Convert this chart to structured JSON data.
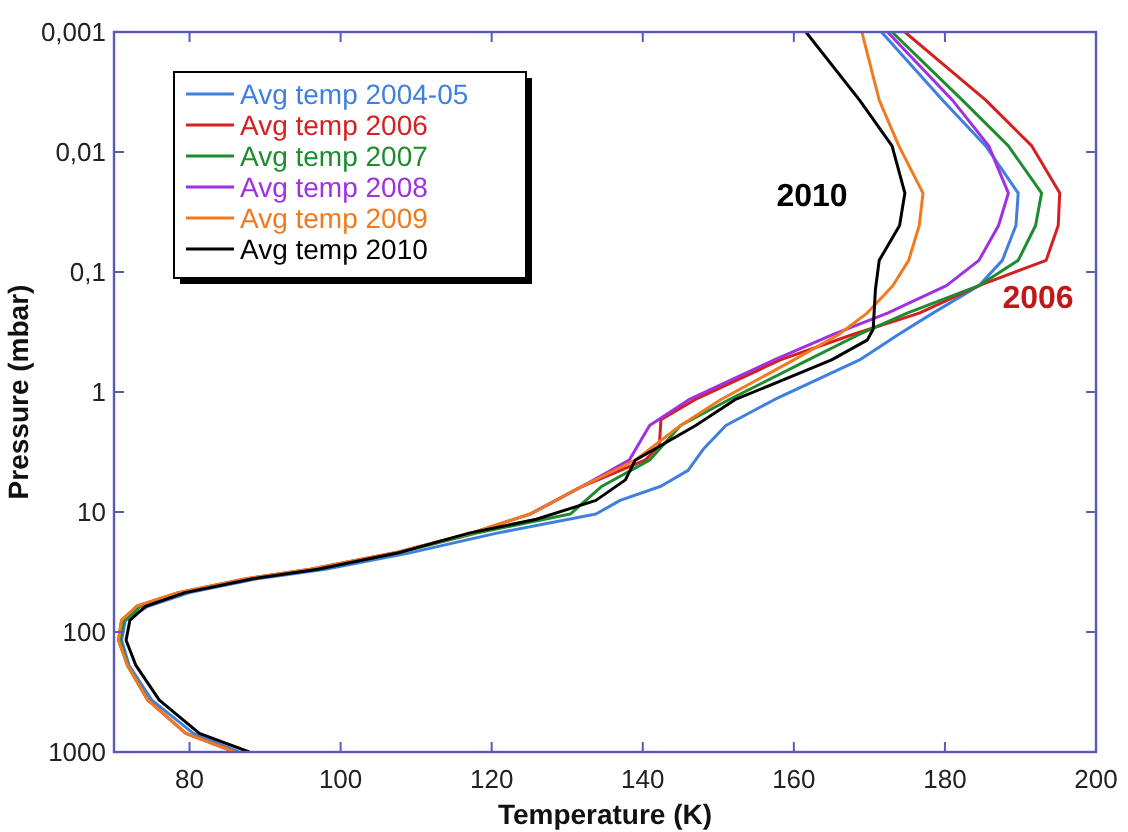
{
  "chart_data": {
    "type": "line",
    "xlabel": "Temperature (K)",
    "ylabel": "Pressure (mbar)",
    "log": "y",
    "xlim": [
      70,
      200
    ],
    "xticks": [
      80,
      100,
      120,
      140,
      160,
      180,
      200
    ],
    "ylim": [
      1000,
      0.001
    ],
    "yticks": [
      {
        "value": 0.001,
        "label": "0,001"
      },
      {
        "value": 0.01,
        "label": "0,01"
      },
      {
        "value": 0.1,
        "label": "0,1"
      },
      1,
      10,
      100,
      1000
    ],
    "legend": "top left",
    "grid": false,
    "line_style": "solid",
    "marker": "none",
    "series": [
      {
        "name": "Avg temp 2004-05",
        "color": "#3f7fe0",
        "x": [
          171.6,
          179.7,
          185.4,
          189.7,
          189.4,
          187.6,
          184.5,
          178.4,
          173.9,
          168.7,
          157.4,
          151,
          148,
          146,
          142.4,
          137,
          133.8,
          120.7,
          109,
          98,
          89,
          80,
          74.5,
          71.5,
          71,
          72,
          75,
          80.5,
          86.5
        ],
        "values": [
          0.001,
          0.0037,
          0.0089,
          0.022,
          0.041,
          0.08,
          0.13,
          0.22,
          0.33,
          0.54,
          1.16,
          1.9,
          3,
          4.5,
          6.1,
          8,
          10.4,
          15,
          22,
          30,
          36,
          47,
          61,
          80,
          117,
          190,
          370,
          700,
          1000
        ]
      },
      {
        "name": "Avg temp 2006",
        "color": "#d42020",
        "x": [
          174.7,
          185.4,
          191.5,
          195.2,
          195,
          193.4,
          184.5,
          176.6,
          167.9,
          158.2,
          146.9,
          142.4,
          142.2,
          140.3,
          132,
          125.1,
          117.3,
          107,
          96,
          87.5,
          78.5,
          73,
          71,
          70.6,
          71.8,
          74.5,
          79.5,
          86
        ],
        "values": [
          0.001,
          0.0037,
          0.0089,
          0.022,
          0.041,
          0.08,
          0.13,
          0.22,
          0.33,
          0.54,
          1.16,
          1.7,
          2.8,
          3.7,
          6.1,
          10.4,
          15,
          22,
          30,
          36,
          47,
          61,
          80,
          117,
          190,
          370,
          700,
          1000
        ]
      },
      {
        "name": "Avg temp 2007",
        "color": "#1e8c2e",
        "x": [
          173,
          182.3,
          188.4,
          192.8,
          192,
          189.7,
          184.5,
          175,
          168.7,
          161.9,
          151.4,
          145,
          140.9,
          134.6,
          130.4,
          118,
          107.5,
          96.5,
          88,
          79,
          73.5,
          71.3,
          70.8,
          71.8,
          74.5
        ],
        "values": [
          0.001,
          0.0037,
          0.0089,
          0.022,
          0.041,
          0.08,
          0.13,
          0.22,
          0.33,
          0.54,
          1.16,
          1.9,
          3.7,
          6.1,
          10.4,
          15,
          22,
          30,
          36,
          47,
          61,
          80,
          117,
          190,
          370
        ]
      },
      {
        "name": "Avg temp 2008",
        "color": "#a030e0",
        "x": [
          172.4,
          181,
          185.8,
          188.4,
          187.1,
          184.5,
          180.2,
          172.4,
          165.3,
          157.4,
          146.1,
          140.9,
          138.2,
          132,
          125.1
        ],
        "values": [
          0.001,
          0.0037,
          0.0089,
          0.022,
          0.041,
          0.08,
          0.13,
          0.22,
          0.33,
          0.54,
          1.16,
          1.9,
          3.7,
          6.1,
          10.4
        ]
      },
      {
        "name": "Avg temp 2009",
        "color": "#f07a20",
        "x": [
          169,
          171.3,
          173.9,
          177.1,
          176.6,
          175.2,
          173.1,
          169.7,
          166,
          160,
          150.3,
          145,
          139,
          132,
          125.1,
          117.3,
          107,
          96,
          87.5,
          78.5,
          73,
          71,
          70.6,
          71.8,
          74.5,
          79.5,
          86
        ],
        "values": [
          0.001,
          0.0037,
          0.0089,
          0.022,
          0.041,
          0.08,
          0.13,
          0.22,
          0.33,
          0.54,
          1.16,
          1.9,
          3.7,
          6.1,
          10.4,
          15,
          22,
          30,
          36,
          47,
          61,
          80,
          117,
          190,
          370,
          700,
          1000
        ]
      },
      {
        "name": "Avg temp 2010",
        "color": "#000000",
        "x": [
          161.6,
          168.7,
          173,
          174.7,
          174,
          171.3,
          170.8,
          170.5,
          169.7,
          165,
          152.2,
          147,
          139,
          137.7,
          133.8,
          125.9,
          117,
          107.5,
          97,
          88.4,
          79.4,
          74.2,
          72.1,
          71.6,
          72.9,
          76,
          81.3,
          87.9
        ],
        "values": [
          0.001,
          0.0037,
          0.0089,
          0.022,
          0.041,
          0.08,
          0.14,
          0.3,
          0.37,
          0.54,
          1.16,
          1.9,
          3.7,
          5.4,
          8,
          11.5,
          15,
          22,
          30,
          36,
          47,
          61,
          80,
          117,
          190,
          370,
          700,
          1000
        ]
      }
    ],
    "annotations": [
      "2010",
      "2006"
    ]
  }
}
